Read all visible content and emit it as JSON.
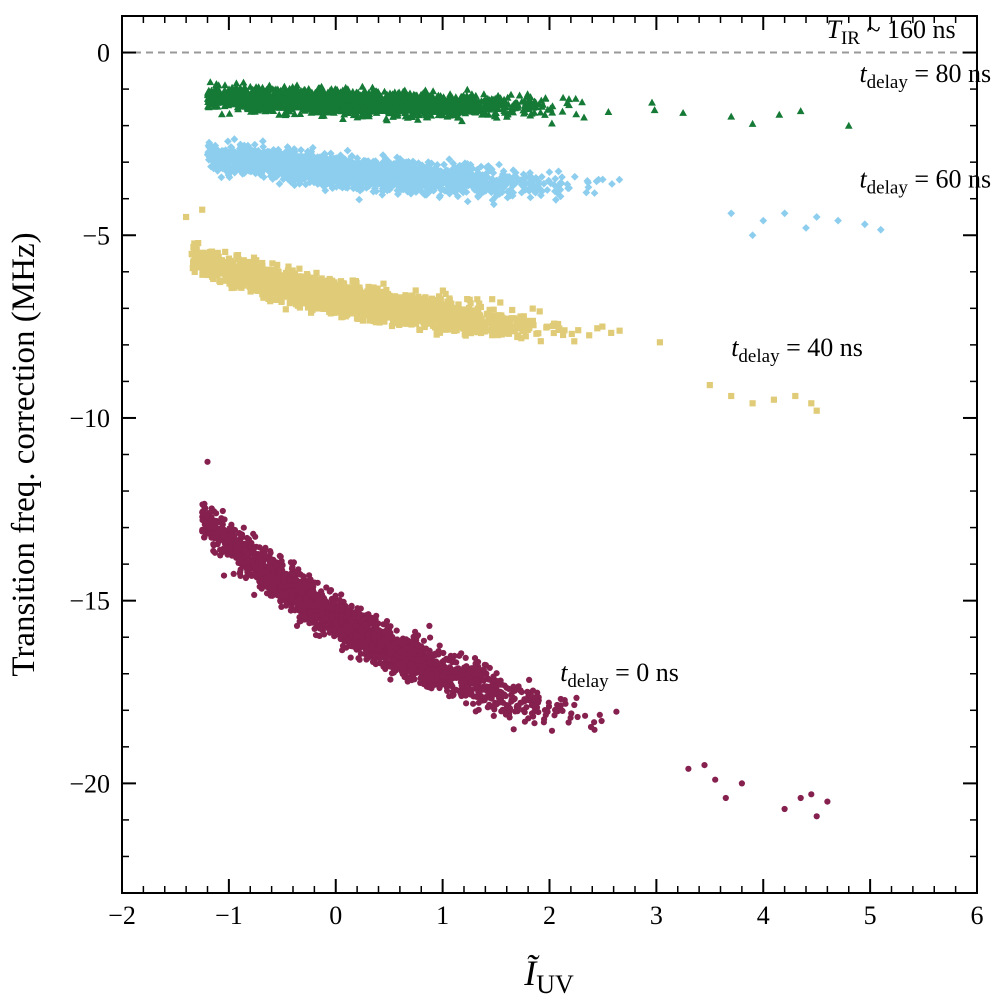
{
  "chart_data": {
    "type": "scatter",
    "title": "",
    "xlabel": "Ĩ",
    "xlabel_sub": "UV",
    "ylabel": "Transition freq. correction (MHz)",
    "xlim": [
      -2,
      6
    ],
    "ylim": [
      -23,
      1
    ],
    "x_ticks": [
      -2,
      -1,
      0,
      1,
      2,
      3,
      4,
      5,
      6
    ],
    "x_tick_labels": [
      "−2",
      "−1",
      "0",
      "1",
      "2",
      "3",
      "4",
      "5",
      "6"
    ],
    "y_ticks": [
      0,
      -5,
      -10,
      -15,
      -20
    ],
    "y_tick_labels": [
      "0",
      "−5",
      "−10",
      "−15",
      "−20"
    ],
    "reference_line": {
      "y": 0,
      "style": "dashed",
      "color": "#999999"
    },
    "header_annotation": {
      "symbol": "T",
      "sub": "IR",
      "text": " ~ 160 ns",
      "anchor_x": 5.8,
      "anchor_y": 0.4
    },
    "series": [
      {
        "name": "t_delay = 0 ns",
        "label_symbol": "t",
        "label_sub": "delay",
        "label_text": " = 0 ns",
        "label_at": [
          2.1,
          -17.2
        ],
        "marker": "circle",
        "color": "#85204F",
        "x_range": [
          -1.25,
          4.6
        ],
        "model": {
          "a": -15.5,
          "b": 3.2,
          "c": -0.68,
          "d": 0.04,
          "scatter": 0.28
        },
        "n_points": 2400,
        "outliers": [
          [
            -1.2,
            -11.2
          ],
          [
            3.3,
            -19.6
          ],
          [
            3.45,
            -19.5
          ],
          [
            3.55,
            -19.9
          ],
          [
            3.8,
            -20.0
          ],
          [
            4.2,
            -20.7
          ],
          [
            4.45,
            -20.3
          ],
          [
            4.5,
            -20.9
          ],
          [
            4.6,
            -20.5
          ],
          [
            3.65,
            -20.4
          ],
          [
            4.35,
            -20.4
          ]
        ]
      },
      {
        "name": "t_delay = 40 ns",
        "label_symbol": "t",
        "label_sub": "delay",
        "label_text": " = 40 ns",
        "label_at": [
          3.7,
          -8.3
        ],
        "marker": "square",
        "color": "#E0CC78",
        "x_range": [
          -1.35,
          4.5
        ],
        "model": {
          "a": -6.7,
          "b": 1.25,
          "c": -0.18,
          "d": 0.01,
          "scatter": 0.2
        },
        "n_points": 2400,
        "outliers": [
          [
            -1.4,
            -4.5
          ],
          [
            -1.25,
            -4.3
          ],
          [
            3.7,
            -9.4
          ],
          [
            3.9,
            -9.6
          ],
          [
            4.1,
            -9.5
          ],
          [
            4.3,
            -9.4
          ],
          [
            4.45,
            -9.6
          ],
          [
            4.5,
            -9.8
          ],
          [
            3.5,
            -9.1
          ]
        ]
      },
      {
        "name": "t_delay = 60 ns",
        "label_symbol": "t",
        "label_sub": "delay",
        "label_text": " = 60 ns",
        "label_at": [
          4.9,
          -3.7
        ],
        "marker": "diamond",
        "color": "#8DCEEE",
        "x_range": [
          -1.2,
          5.1
        ],
        "model": {
          "a": -3.25,
          "b": 0.6,
          "c": -0.07,
          "d": 0.0,
          "scatter": 0.19
        },
        "n_points": 2400,
        "outliers": [
          [
            4.0,
            -4.6
          ],
          [
            4.2,
            -4.4
          ],
          [
            4.5,
            -4.5
          ],
          [
            4.7,
            -4.6
          ],
          [
            4.95,
            -4.7
          ],
          [
            5.1,
            -4.85
          ],
          [
            3.9,
            -5.0
          ],
          [
            4.4,
            -4.8
          ],
          [
            3.7,
            -4.4
          ]
        ]
      },
      {
        "name": "t_delay = 80 ns",
        "label_symbol": "t",
        "label_sub": "delay",
        "label_text": " = 80 ns",
        "label_at": [
          4.9,
          -0.8
        ],
        "marker": "triangle",
        "color": "#167A37",
        "x_range": [
          -1.2,
          4.3
        ],
        "model": {
          "a": -1.35,
          "b": 0.2,
          "c": -0.03,
          "d": 0.0,
          "scatter": 0.15
        },
        "n_points": 2200,
        "outliers": [
          [
            4.8,
            -2.0
          ],
          [
            4.35,
            -1.6
          ],
          [
            4.15,
            -1.7
          ],
          [
            3.9,
            -1.95
          ],
          [
            3.7,
            -1.75
          ],
          [
            3.25,
            -1.65
          ]
        ]
      }
    ]
  }
}
